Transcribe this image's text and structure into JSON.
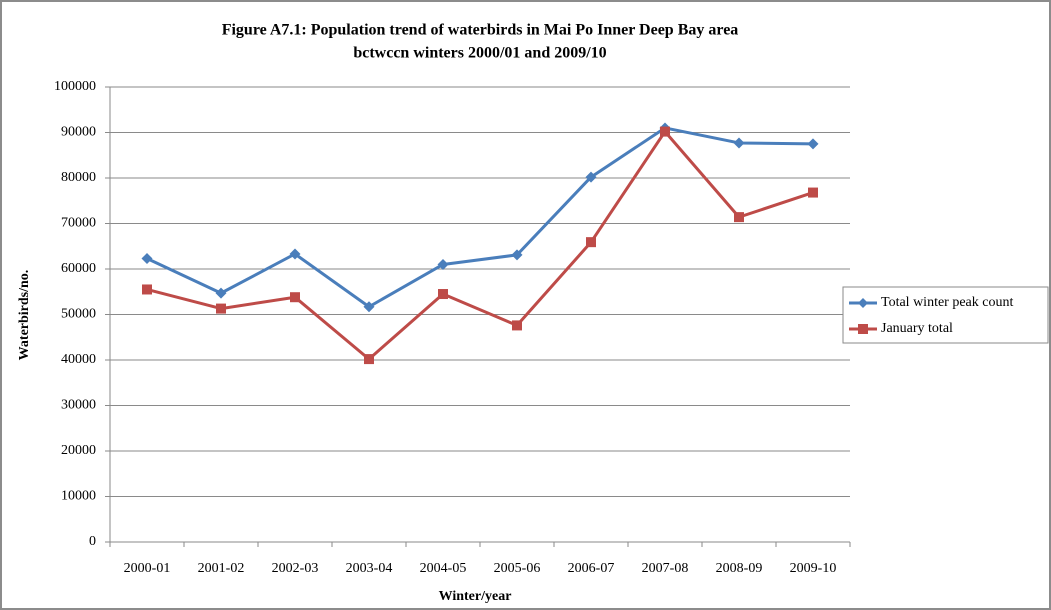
{
  "chart_data": {
    "type": "line",
    "title": "Figure A7.1: Population trend of waterbirds in Mai Po Inner Deep Bay area",
    "subtitle": "bctwccn winters 2000/01 and 2009/10",
    "x_label": "Winter/year",
    "y_label": "Waterbirds/no.",
    "categories": [
      "2000-01",
      "2001-02",
      "2002-03",
      "2003-04",
      "2004-05",
      "2005-06",
      "2006-07",
      "2007-08",
      "2008-09",
      "2009-10"
    ],
    "series": [
      {
        "name": "Total winter peak count",
        "color": "#4a7ebb",
        "marker": "diamond",
        "values": [
          62300,
          54700,
          63300,
          51700,
          61000,
          63100,
          80200,
          91000,
          87700,
          87500
        ]
      },
      {
        "name": "January total",
        "color": "#be4b48",
        "marker": "square",
        "values": [
          55500,
          51300,
          53800,
          40200,
          54500,
          47600,
          65900,
          90200,
          71400,
          76800
        ]
      }
    ],
    "ylim": [
      0,
      100000
    ],
    "yticks": [
      0,
      10000,
      20000,
      30000,
      40000,
      50000,
      60000,
      70000,
      80000,
      90000,
      100000
    ],
    "grid": true,
    "legend": "right"
  }
}
